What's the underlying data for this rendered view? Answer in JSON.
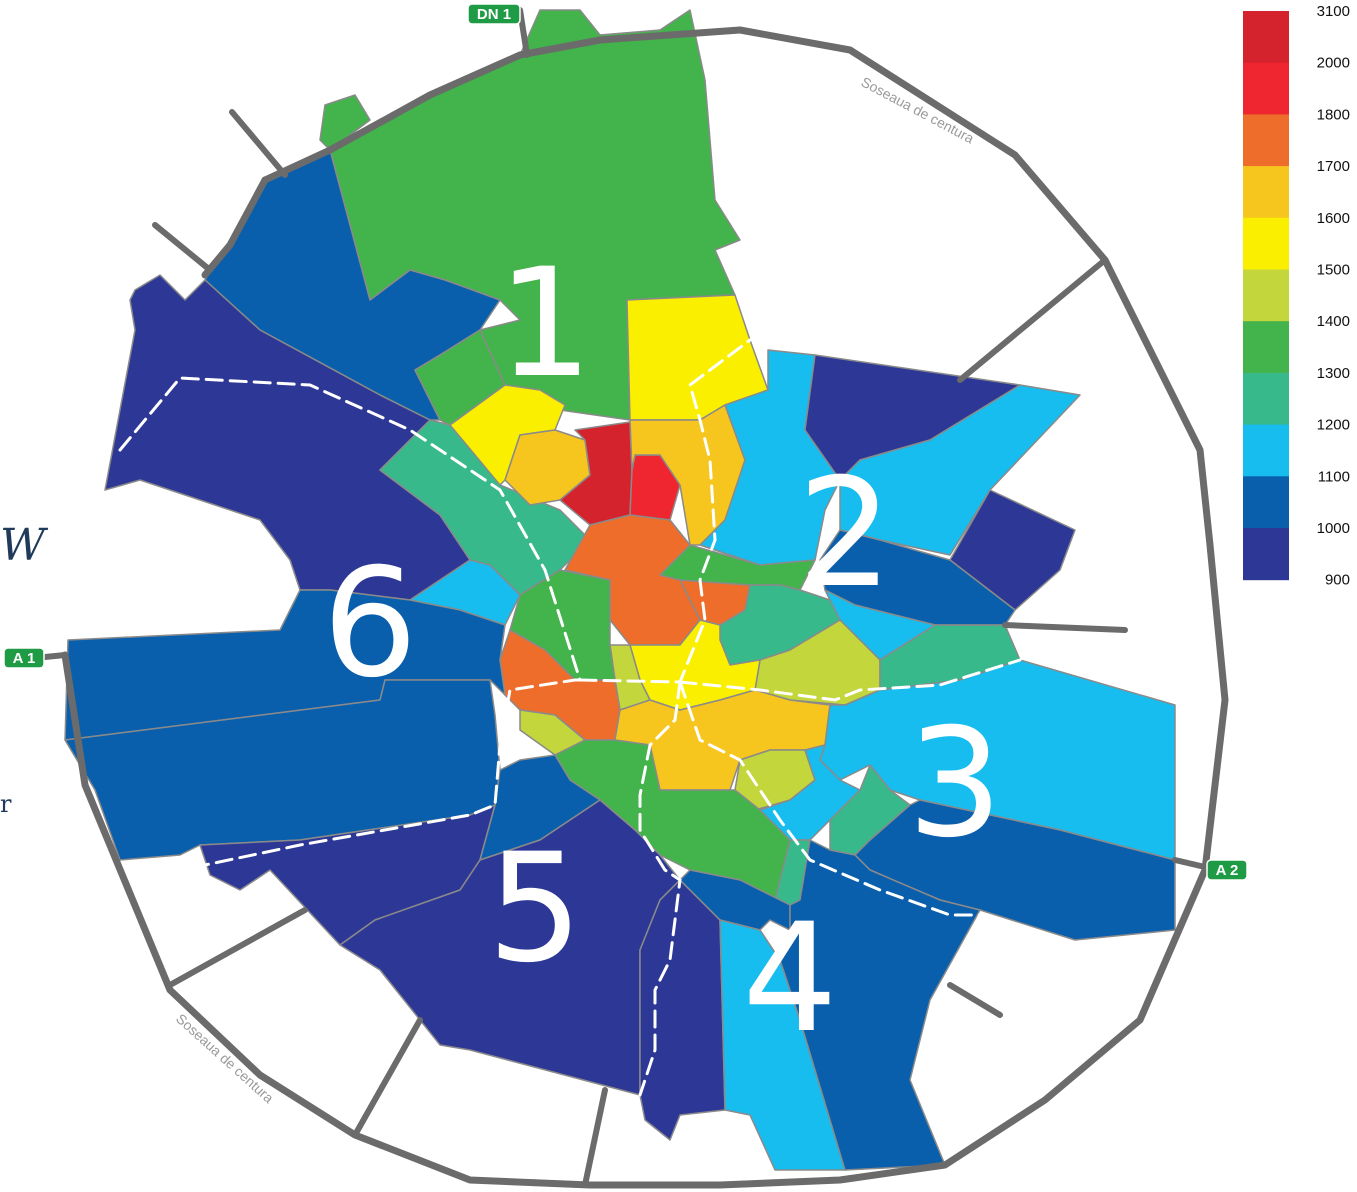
{
  "sectors": [
    "1",
    "2",
    "3",
    "4",
    "5",
    "6"
  ],
  "road_label": "Soseaua de centura",
  "shields": [
    "DN 1",
    "A 1",
    "A 2"
  ],
  "side_fragments": [
    "W",
    "r"
  ],
  "legend": {
    "colors": [
      "#d5232e",
      "#ef2530",
      "#ef6d2a",
      "#f7c61e",
      "#fbef00",
      "#c3d63c",
      "#43b34b",
      "#38b98c",
      "#17bdef",
      "#0a5fad",
      "#2d3896"
    ],
    "ticks": [
      "3100",
      "2000",
      "1800",
      "1700",
      "1600",
      "1500",
      "1400",
      "1300",
      "1200",
      "1100",
      "1000",
      "900"
    ]
  },
  "colors": {
    "ring_road": "#6b6b6b",
    "shield_green": "#1f9a45",
    "sector_border": "#ffffff"
  }
}
